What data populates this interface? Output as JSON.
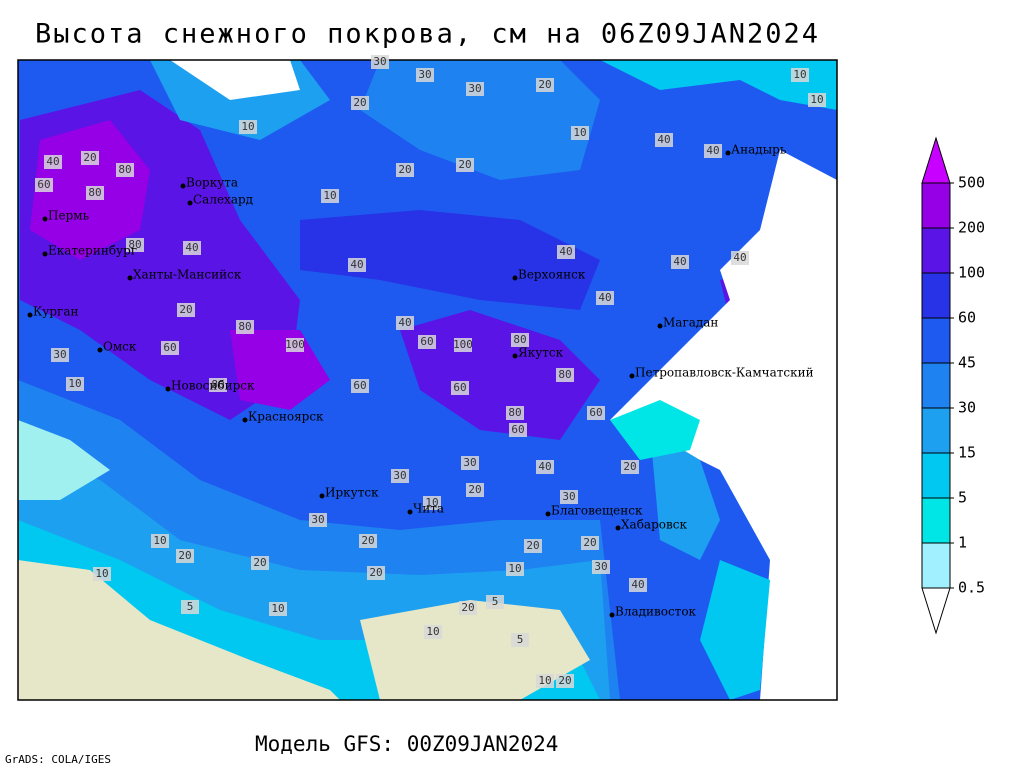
{
  "header": {
    "title": "Высота снежного покрова, см на 06Z09JAN2024"
  },
  "footer": {
    "model": "Модель GFS: 00Z09JAN2024",
    "credit": "GrADS: COLA/IGES"
  },
  "colorbar": {
    "levels": [
      0.5,
      1,
      5,
      15,
      30,
      45,
      60,
      100,
      200,
      500
    ],
    "colors": [
      "#ffffff",
      "#a0f0ff",
      "#00e6e6",
      "#00c8f0",
      "#1ea0f0",
      "#1e82f0",
      "#1e5af0",
      "#2832e6",
      "#5a14e6",
      "#9600e6",
      "#c800ff"
    ]
  },
  "cities": [
    "Воркута",
    "Салехард",
    "Пермь",
    "Екатеринбург",
    "Ханты-Мансийск",
    "Курган",
    "Омск",
    "Новосибирск",
    "Красноярск",
    "Иркутск",
    "Чита",
    "Благовещенск",
    "Хабаровск",
    "Владивосток",
    "Верхоянск",
    "Якутск",
    "Магадан",
    "Петропавловск-Камчатский",
    "Анадырь"
  ],
  "contour_labels": [
    30,
    30,
    30,
    20,
    20,
    10,
    10,
    20,
    20,
    80,
    20,
    40,
    60,
    80,
    80,
    40,
    40,
    40,
    40,
    80,
    100,
    60,
    40,
    100,
    80,
    20,
    60,
    10,
    30,
    80,
    60,
    60,
    80,
    60,
    80,
    60,
    40,
    30,
    20,
    40,
    40,
    40,
    40,
    30,
    30,
    20,
    10,
    20,
    20,
    20,
    10,
    20,
    20,
    10,
    20,
    10,
    30,
    40,
    10,
    20,
    5,
    5,
    10,
    5,
    20,
    10,
    10,
    10,
    30,
    10
  ]
}
